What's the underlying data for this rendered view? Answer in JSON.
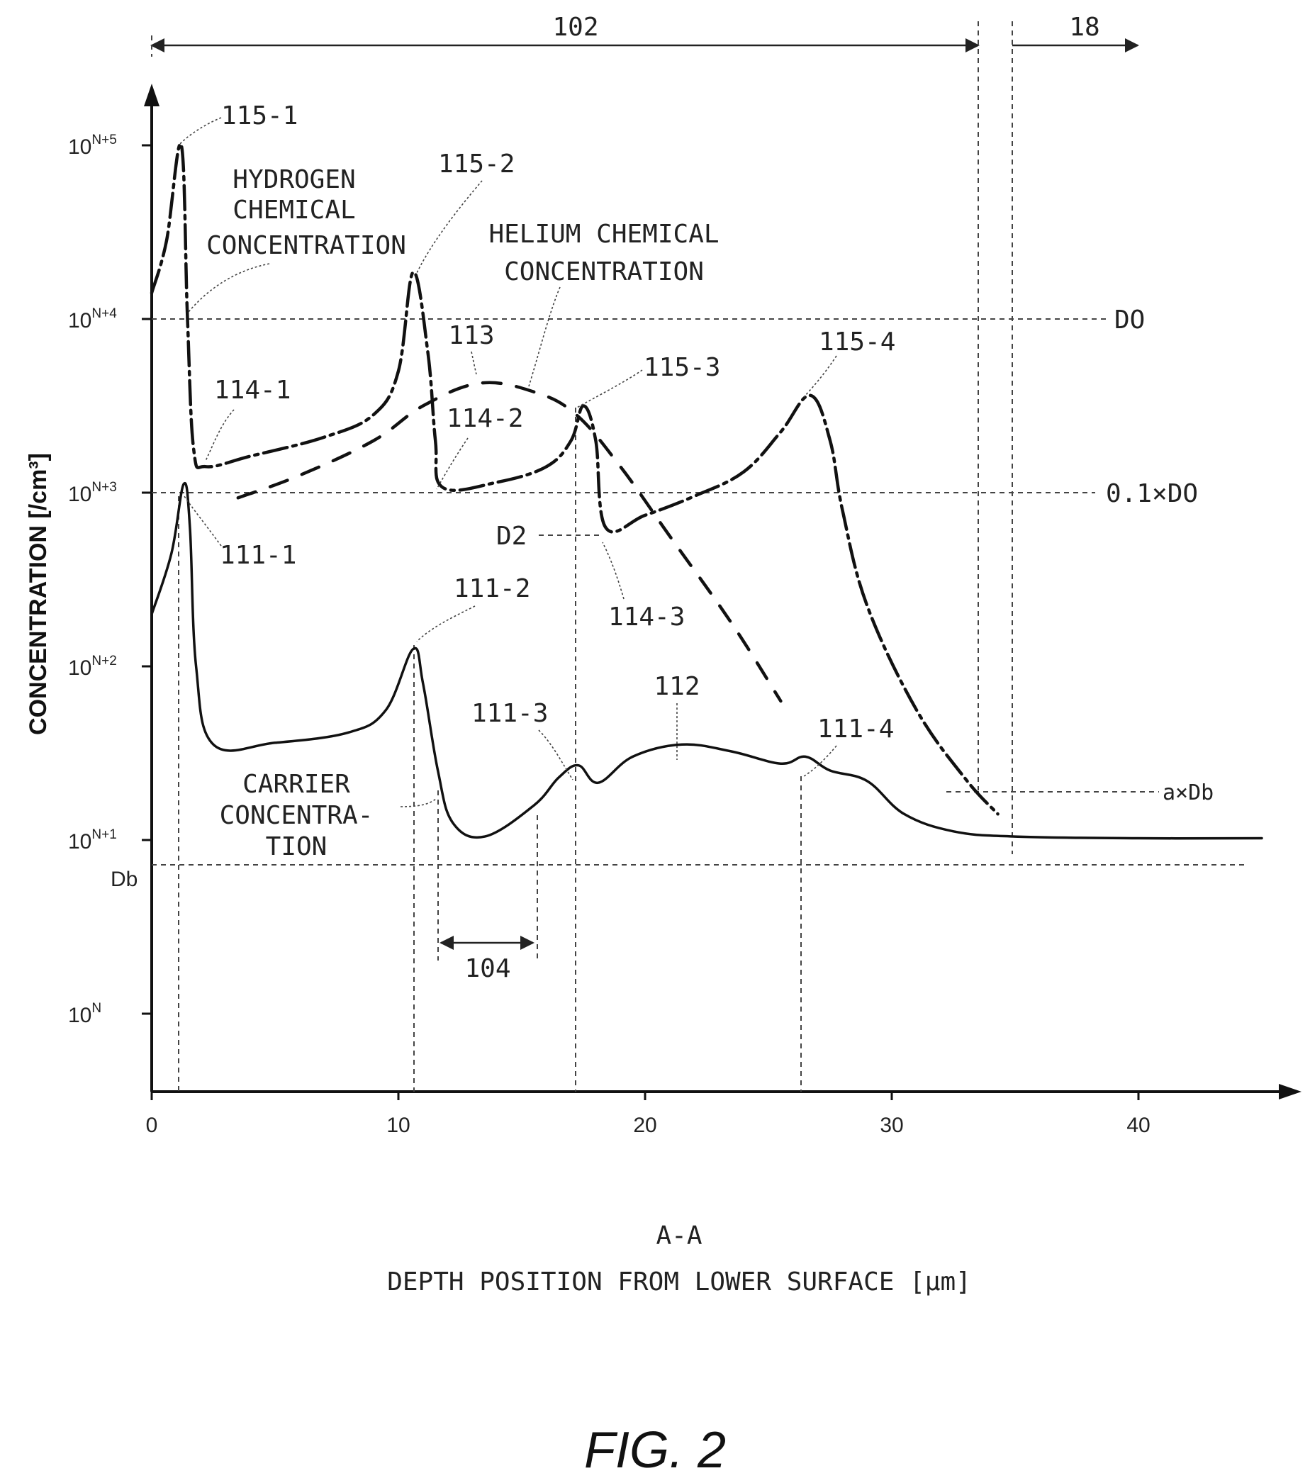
{
  "chart_data": {
    "type": "line",
    "caption": "FIG. 2",
    "xlabel_line1": "A-A",
    "xlabel_line2": "DEPTH POSITION FROM LOWER SURFACE [μm]",
    "ylabel": "CONCENTRATION [/cm³]",
    "x_ticks": [
      0,
      10,
      20,
      30,
      40
    ],
    "xlim": [
      0,
      45
    ],
    "y_scale": "log",
    "y_tick_exponents": [
      0,
      1,
      2,
      3,
      4,
      5
    ],
    "y_tick_labels": [
      {
        "base": "10",
        "exp": "N"
      },
      {
        "base": "10",
        "exp": "N+1"
      },
      {
        "base": "10",
        "exp": "N+2"
      },
      {
        "base": "10",
        "exp": "N+3"
      },
      {
        "base": "10",
        "exp": "N+4"
      },
      {
        "base": "10",
        "exp": "N+5"
      }
    ],
    "ylim_exponent": [
      -0.45,
      5.3
    ],
    "series": [
      {
        "name": "HYDROGEN CHEMICAL CONCENTRATION",
        "style": "dash-dot",
        "points": [
          [
            0,
            4.15
          ],
          [
            0.6,
            4.45
          ],
          [
            1.2,
            5.0
          ],
          [
            1.45,
            4.0
          ],
          [
            1.7,
            3.25
          ],
          [
            2.2,
            3.15
          ],
          [
            4,
            3.21
          ],
          [
            7,
            3.32
          ],
          [
            9,
            3.45
          ],
          [
            10,
            3.7
          ],
          [
            10.6,
            4.27
          ],
          [
            11.2,
            3.8
          ],
          [
            11.5,
            3.3
          ],
          [
            11.8,
            3.03
          ],
          [
            14,
            3.06
          ],
          [
            16,
            3.15
          ],
          [
            17,
            3.3
          ],
          [
            17.5,
            3.5
          ],
          [
            18,
            3.3
          ],
          [
            18.4,
            2.8
          ],
          [
            20,
            2.87
          ],
          [
            22,
            2.98
          ],
          [
            24,
            3.12
          ],
          [
            25.5,
            3.35
          ],
          [
            26.7,
            3.56
          ],
          [
            27.5,
            3.3
          ],
          [
            28,
            2.9
          ],
          [
            29,
            2.35
          ],
          [
            31,
            1.75
          ],
          [
            33,
            1.35
          ],
          [
            34.3,
            1.15
          ]
        ]
      },
      {
        "name": "HELIUM CHEMICAL CONCENTRATION",
        "style": "dashed",
        "points": [
          [
            3.5,
            2.97
          ],
          [
            6,
            3.1
          ],
          [
            9,
            3.3
          ],
          [
            11,
            3.5
          ],
          [
            13.3,
            3.63
          ],
          [
            15.5,
            3.58
          ],
          [
            17.2,
            3.45
          ],
          [
            19,
            3.15
          ],
          [
            21,
            2.75
          ],
          [
            23.5,
            2.25
          ],
          [
            25.5,
            1.8
          ]
        ]
      },
      {
        "name": "CARRIER CONCENTRATION",
        "style": "solid",
        "points": [
          [
            0,
            2.3
          ],
          [
            0.8,
            2.65
          ],
          [
            1.3,
            3.05
          ],
          [
            1.55,
            2.8
          ],
          [
            1.8,
            2.0
          ],
          [
            2.5,
            1.55
          ],
          [
            5,
            1.56
          ],
          [
            8,
            1.62
          ],
          [
            9.5,
            1.75
          ],
          [
            10.6,
            2.1
          ],
          [
            11,
            1.9
          ],
          [
            11.6,
            1.4
          ],
          [
            12.2,
            1.1
          ],
          [
            13.5,
            1.02
          ],
          [
            15.5,
            1.2
          ],
          [
            16.5,
            1.36
          ],
          [
            17.3,
            1.43
          ],
          [
            18.1,
            1.33
          ],
          [
            19.5,
            1.48
          ],
          [
            21.5,
            1.55
          ],
          [
            23.5,
            1.51
          ],
          [
            25.5,
            1.44
          ],
          [
            26.5,
            1.48
          ],
          [
            27.5,
            1.4
          ],
          [
            29,
            1.34
          ],
          [
            30.5,
            1.15
          ],
          [
            32.5,
            1.05
          ],
          [
            35,
            1.02
          ],
          [
            40,
            1.01
          ],
          [
            45,
            1.01
          ]
        ]
      }
    ],
    "reference_lines": [
      {
        "label": "DO",
        "y_exponent": 4.0
      },
      {
        "label": "0.1×DO",
        "y_exponent": 3.0
      },
      {
        "label": "D2",
        "y_exponent": 2.77
      },
      {
        "label": "Db",
        "y_exponent": 1.0
      },
      {
        "label": "a×Db",
        "y_exponent": 1.3
      }
    ],
    "region_labels": {
      "r102": "102",
      "r18": "18",
      "r104": "104"
    },
    "curve_labels": {
      "hydrogen": [
        "HYDROGEN",
        "CHEMICAL",
        "CONCENTRATION"
      ],
      "helium": [
        "HELIUM CHEMICAL",
        "CONCENTRATION"
      ],
      "carrier": [
        "CARRIER",
        "CONCENTRA-",
        "TION"
      ]
    },
    "annotations": [
      "115-1",
      "115-2",
      "115-3",
      "115-4",
      "114-1",
      "114-2",
      "114-3",
      "111-1",
      "111-2",
      "111-3",
      "111-4",
      "112",
      "113"
    ]
  }
}
